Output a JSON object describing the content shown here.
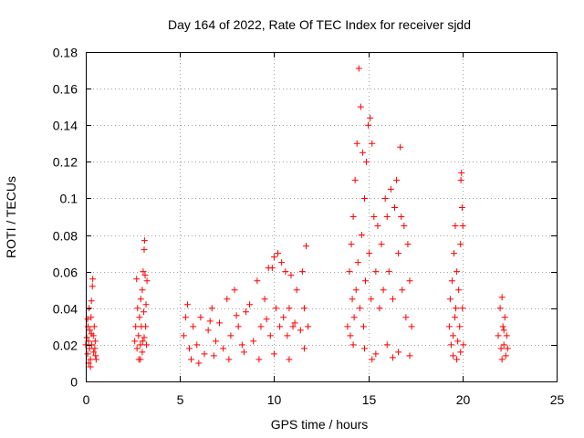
{
  "chart_data": {
    "type": "scatter",
    "title": "Day 164 of 2022, Rate Of TEC Index for receiver sjdd",
    "xlabel": "GPS time / hours",
    "ylabel": "ROTI / TECUs",
    "xlim": [
      0,
      25
    ],
    "ylim": [
      0,
      0.18
    ],
    "x_ticks": [
      0,
      5,
      10,
      15,
      20,
      25
    ],
    "x_tick_labels": [
      "0",
      "5",
      "10",
      "15",
      "20",
      "25"
    ],
    "y_ticks": [
      0,
      0.02,
      0.04,
      0.06,
      0.08,
      0.1,
      0.12,
      0.14,
      0.16,
      0.18
    ],
    "y_tick_labels": [
      "0",
      "0.02",
      "0.04",
      "0.06",
      "0.08",
      "0.1",
      "0.12",
      "0.14",
      "0.16",
      "0.18"
    ],
    "grid": true,
    "marker": "+",
    "color": "#ff0000",
    "series": [
      {
        "points": [
          [
            0.0,
            0.02
          ],
          [
            0.05,
            0.024
          ],
          [
            0.1,
            0.015
          ],
          [
            0.12,
            0.03
          ],
          [
            0.15,
            0.022
          ],
          [
            0.18,
            0.04
          ],
          [
            0.2,
            0.018
          ],
          [
            0.22,
            0.028
          ],
          [
            0.25,
            0.012
          ],
          [
            0.28,
            0.035
          ],
          [
            0.3,
            0.044
          ],
          [
            0.32,
            0.02
          ],
          [
            0.35,
            0.052
          ],
          [
            0.37,
            0.056
          ],
          [
            0.4,
            0.025
          ],
          [
            0.42,
            0.016
          ],
          [
            0.45,
            0.03
          ],
          [
            0.48,
            0.018
          ],
          [
            0.5,
            0.022
          ],
          [
            0.52,
            0.014
          ],
          [
            0.55,
            0.012
          ],
          [
            0.15,
            0.01
          ],
          [
            0.25,
            0.008
          ],
          [
            0.1,
            0.034
          ],
          [
            0.3,
            0.026
          ],
          [
            2.6,
            0.022
          ],
          [
            2.65,
            0.03
          ],
          [
            2.7,
            0.056
          ],
          [
            2.72,
            0.018
          ],
          [
            2.75,
            0.04
          ],
          [
            2.8,
            0.025
          ],
          [
            2.82,
            0.012
          ],
          [
            2.85,
            0.035
          ],
          [
            2.9,
            0.02
          ],
          [
            2.92,
            0.045
          ],
          [
            2.95,
            0.03
          ],
          [
            3.0,
            0.05
          ],
          [
            3.02,
            0.022
          ],
          [
            3.05,
            0.06
          ],
          [
            3.08,
            0.038
          ],
          [
            3.1,
            0.072
          ],
          [
            3.12,
            0.077
          ],
          [
            3.15,
            0.058
          ],
          [
            3.18,
            0.03
          ],
          [
            3.2,
            0.042
          ],
          [
            3.22,
            0.02
          ],
          [
            3.25,
            0.055
          ],
          [
            3.0,
            0.016
          ],
          [
            2.9,
            0.012
          ],
          [
            3.1,
            0.024
          ],
          [
            5.2,
            0.025
          ],
          [
            5.4,
            0.042
          ],
          [
            5.5,
            0.018
          ],
          [
            5.7,
            0.03
          ],
          [
            5.9,
            0.02
          ],
          [
            6.1,
            0.035
          ],
          [
            6.3,
            0.015
          ],
          [
            6.5,
            0.028
          ],
          [
            6.7,
            0.04
          ],
          [
            6.9,
            0.022
          ],
          [
            7.1,
            0.032
          ],
          [
            7.3,
            0.018
          ],
          [
            7.5,
            0.045
          ],
          [
            7.7,
            0.025
          ],
          [
            7.9,
            0.05
          ],
          [
            8.1,
            0.03
          ],
          [
            8.3,
            0.02
          ],
          [
            8.5,
            0.038
          ],
          [
            8.7,
            0.042
          ],
          [
            8.9,
            0.022
          ],
          [
            9.1,
            0.055
          ],
          [
            9.3,
            0.03
          ],
          [
            9.5,
            0.045
          ],
          [
            9.7,
            0.062
          ],
          [
            9.8,
            0.025
          ],
          [
            9.9,
            0.062
          ],
          [
            10.0,
            0.068
          ],
          [
            10.1,
            0.04
          ],
          [
            10.2,
            0.07
          ],
          [
            10.3,
            0.03
          ],
          [
            10.4,
            0.065
          ],
          [
            10.5,
            0.035
          ],
          [
            10.6,
            0.06
          ],
          [
            10.7,
            0.025
          ],
          [
            10.8,
            0.04
          ],
          [
            10.9,
            0.058
          ],
          [
            11.0,
            0.03
          ],
          [
            11.2,
            0.05
          ],
          [
            11.4,
            0.028
          ],
          [
            11.5,
            0.06
          ],
          [
            11.6,
            0.04
          ],
          [
            11.7,
            0.074
          ],
          [
            11.8,
            0.03
          ],
          [
            5.6,
            0.012
          ],
          [
            6.0,
            0.01
          ],
          [
            6.8,
            0.014
          ],
          [
            7.6,
            0.012
          ],
          [
            8.4,
            0.016
          ],
          [
            9.2,
            0.012
          ],
          [
            10.0,
            0.015
          ],
          [
            10.8,
            0.012
          ],
          [
            11.6,
            0.018
          ],
          [
            5.3,
            0.035
          ],
          [
            6.6,
            0.033
          ],
          [
            8.0,
            0.036
          ],
          [
            9.6,
            0.034
          ],
          [
            11.1,
            0.032
          ],
          [
            13.9,
            0.03
          ],
          [
            14.0,
            0.06
          ],
          [
            14.05,
            0.025
          ],
          [
            14.1,
            0.075
          ],
          [
            14.15,
            0.045
          ],
          [
            14.2,
            0.09
          ],
          [
            14.25,
            0.035
          ],
          [
            14.3,
            0.11
          ],
          [
            14.35,
            0.05
          ],
          [
            14.4,
            0.13
          ],
          [
            14.45,
            0.065
          ],
          [
            14.5,
            0.171
          ],
          [
            14.55,
            0.04
          ],
          [
            14.6,
            0.15
          ],
          [
            14.65,
            0.08
          ],
          [
            14.7,
            0.125
          ],
          [
            14.75,
            0.03
          ],
          [
            14.8,
            0.1
          ],
          [
            14.85,
            0.055
          ],
          [
            14.9,
            0.12
          ],
          [
            15.0,
            0.14
          ],
          [
            15.05,
            0.07
          ],
          [
            15.1,
            0.144
          ],
          [
            15.15,
            0.045
          ],
          [
            15.2,
            0.13
          ],
          [
            15.3,
            0.09
          ],
          [
            15.4,
            0.06
          ],
          [
            15.5,
            0.085
          ],
          [
            15.6,
            0.04
          ],
          [
            15.7,
            0.075
          ],
          [
            15.8,
            0.05
          ],
          [
            15.9,
            0.1
          ],
          [
            16.0,
            0.09
          ],
          [
            16.1,
            0.06
          ],
          [
            16.2,
            0.105
          ],
          [
            16.3,
            0.045
          ],
          [
            16.4,
            0.095
          ],
          [
            16.5,
            0.11
          ],
          [
            16.6,
            0.07
          ],
          [
            16.7,
            0.128
          ],
          [
            16.75,
            0.09
          ],
          [
            16.8,
            0.05
          ],
          [
            16.9,
            0.085
          ],
          [
            17.0,
            0.035
          ],
          [
            17.1,
            0.075
          ],
          [
            17.2,
            0.055
          ],
          [
            17.3,
            0.03
          ],
          [
            14.2,
            0.02
          ],
          [
            14.8,
            0.018
          ],
          [
            15.4,
            0.015
          ],
          [
            16.0,
            0.02
          ],
          [
            16.6,
            0.016
          ],
          [
            17.2,
            0.014
          ],
          [
            15.2,
            0.012
          ],
          [
            16.3,
            0.013
          ],
          [
            19.3,
            0.03
          ],
          [
            19.35,
            0.045
          ],
          [
            19.4,
            0.02
          ],
          [
            19.45,
            0.055
          ],
          [
            19.5,
            0.025
          ],
          [
            19.55,
            0.07
          ],
          [
            19.6,
            0.035
          ],
          [
            19.62,
            0.085
          ],
          [
            19.65,
            0.04
          ],
          [
            19.7,
            0.06
          ],
          [
            19.75,
            0.022
          ],
          [
            19.8,
            0.05
          ],
          [
            19.85,
            0.03
          ],
          [
            19.9,
            0.075
          ],
          [
            19.92,
            0.11
          ],
          [
            19.95,
            0.114
          ],
          [
            19.98,
            0.095
          ],
          [
            20.0,
            0.04
          ],
          [
            20.02,
            0.085
          ],
          [
            20.05,
            0.02
          ],
          [
            19.5,
            0.014
          ],
          [
            19.7,
            0.012
          ],
          [
            19.9,
            0.016
          ],
          [
            21.9,
            0.025
          ],
          [
            22.0,
            0.04
          ],
          [
            22.05,
            0.018
          ],
          [
            22.1,
            0.046
          ],
          [
            22.15,
            0.03
          ],
          [
            22.2,
            0.02
          ],
          [
            22.25,
            0.035
          ],
          [
            22.3,
            0.014
          ],
          [
            22.35,
            0.025
          ],
          [
            22.4,
            0.018
          ],
          [
            22.1,
            0.012
          ],
          [
            22.2,
            0.028
          ]
        ]
      }
    ]
  }
}
